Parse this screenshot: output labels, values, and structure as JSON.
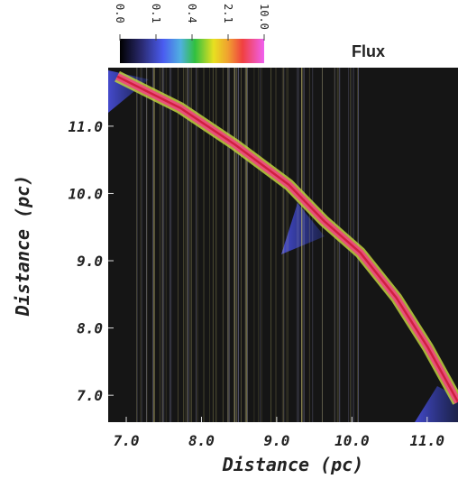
{
  "chart_data": {
    "type": "line",
    "xlabel": "Distance (pc)",
    "ylabel": "Distance (pc)",
    "xlim": [
      6.76,
      11.41
    ],
    "ylim": [
      6.6,
      11.87
    ],
    "xticks": [
      {
        "value": 7,
        "label": "7.0"
      },
      {
        "value": 8,
        "label": "8.0"
      },
      {
        "value": 9,
        "label": "9.0"
      },
      {
        "value": 10,
        "label": "10.0"
      },
      {
        "value": 11,
        "label": "11.0"
      }
    ],
    "yticks": [
      {
        "value": 7,
        "label": "7.0"
      },
      {
        "value": 8,
        "label": "8.0"
      },
      {
        "value": 9,
        "label": "9.0"
      },
      {
        "value": 10,
        "label": "10.0"
      },
      {
        "value": 11,
        "label": "11.0"
      }
    ],
    "colorbar": {
      "label": "Flux",
      "ticks": [
        {
          "value": 0,
          "label": "0.0"
        },
        {
          "value": 0.1,
          "label": "0.1"
        },
        {
          "value": 0.4,
          "label": "0.4"
        },
        {
          "value": 2.1,
          "label": "2.1"
        },
        {
          "value": 10,
          "label": "10.0"
        }
      ]
    },
    "series": [
      {
        "color": "#e8507a",
        "x": [
          6.88,
          7.72,
          8.44,
          9.16,
          9.63,
          10.11,
          10.59,
          11.01,
          11.41
        ],
        "values": [
          11.74,
          11.27,
          10.73,
          10.13,
          9.59,
          9.12,
          8.45,
          7.71,
          6.9
        ]
      }
    ]
  }
}
